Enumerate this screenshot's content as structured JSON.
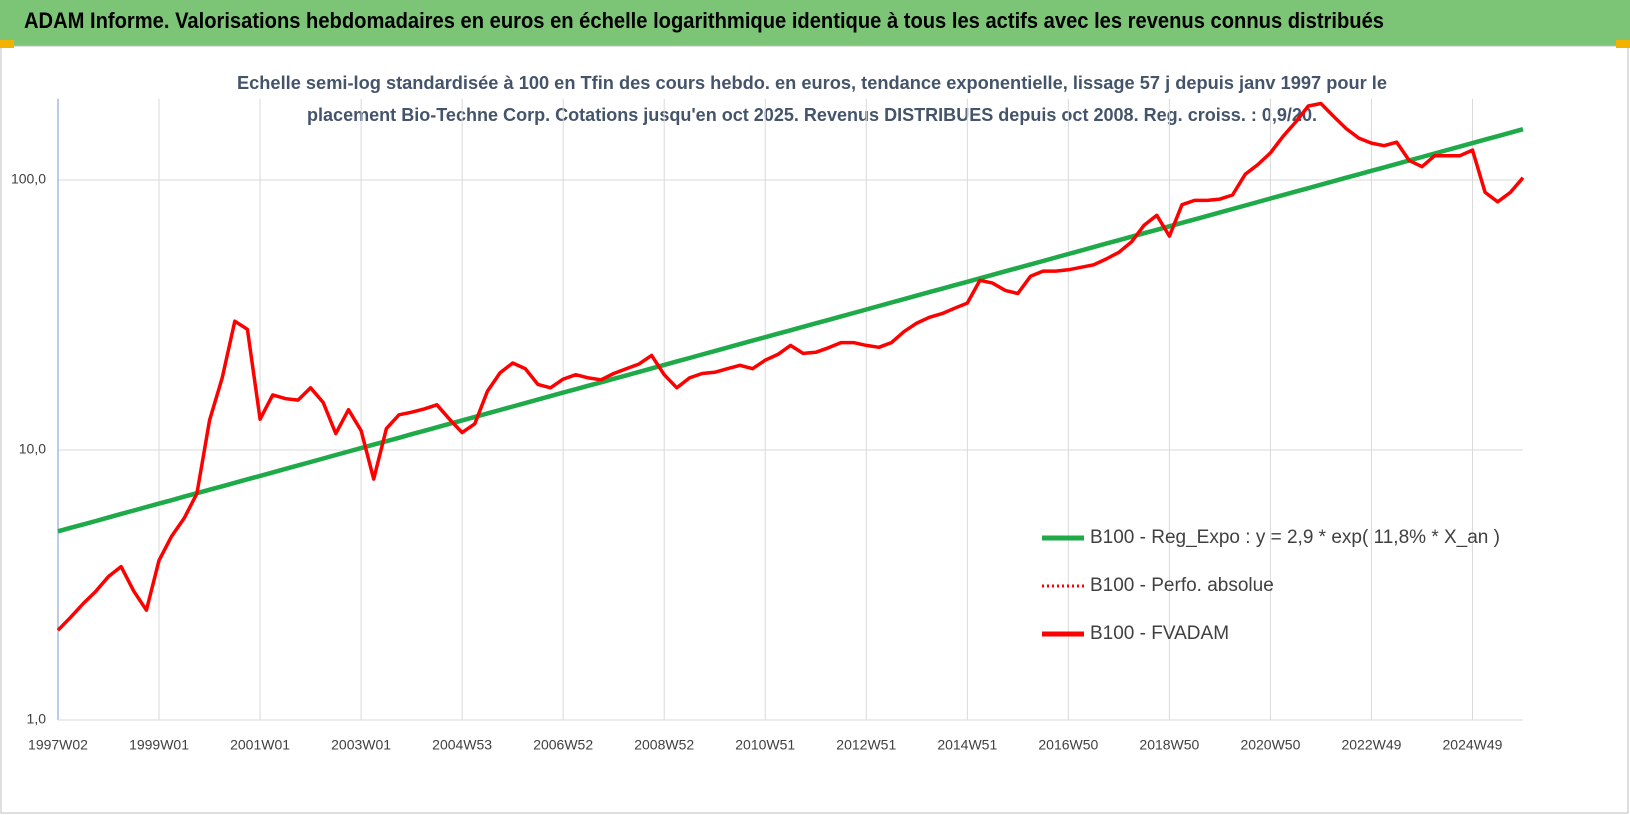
{
  "chart_data": {
    "type": "line",
    "title": "ADAM Informe. Valorisations hebdomadaires en euros en échelle logarithmique identique à tous les actifs avec les revenus connus distribués",
    "subtitle_lines": [
      "Echelle semi-log standardisée à 100 en Tfin des cours hebdo. en euros, tendance exponentielle, lissage 57 j depuis janv 1997 pour le",
      "placement Bio-Techne Corp. Cotations jusqu'en oct 2025. Revenus DISTRIBUES depuis oct 2008. Reg. croiss. : 0,9/20."
    ],
    "log_scale": true,
    "grid": true,
    "legend_position": "right",
    "ylim": [
      1,
      200
    ],
    "yticks": [
      {
        "value": 1,
        "label": "1,0"
      },
      {
        "value": 10,
        "label": "10,0"
      },
      {
        "value": 100,
        "label": "100,0"
      }
    ],
    "categories": [
      "1997W02",
      null,
      null,
      null,
      null,
      null,
      null,
      null,
      "1999W01",
      null,
      null,
      null,
      null,
      null,
      null,
      null,
      "2001W01",
      null,
      null,
      null,
      null,
      null,
      null,
      null,
      "2003W01",
      null,
      null,
      null,
      null,
      null,
      null,
      null,
      "2004W53",
      null,
      null,
      null,
      null,
      null,
      null,
      null,
      "2006W52",
      null,
      null,
      null,
      null,
      null,
      null,
      null,
      "2008W52",
      null,
      null,
      null,
      null,
      null,
      null,
      null,
      "2010W51",
      null,
      null,
      null,
      null,
      null,
      null,
      null,
      "2012W51",
      null,
      null,
      null,
      null,
      null,
      null,
      null,
      "2014W51",
      null,
      null,
      null,
      null,
      null,
      null,
      null,
      "2016W50",
      null,
      null,
      null,
      null,
      null,
      null,
      null,
      "2018W50",
      null,
      null,
      null,
      null,
      null,
      null,
      null,
      "2020W50",
      null,
      null,
      null,
      null,
      null,
      null,
      null,
      "2022W49",
      null,
      null,
      null,
      null,
      null,
      null,
      null,
      "2024W49",
      null,
      null,
      null,
      null
    ],
    "series": [
      {
        "name": "B100 - Reg_Expo : y = 2,9 * exp( 11,8% *  X_an )",
        "color": "#1faa4a",
        "style": "solid",
        "width": 4.5,
        "values": [
          5.0,
          5.15,
          5.3,
          5.46,
          5.63,
          5.8,
          5.97,
          6.15,
          6.33,
          6.52,
          6.72,
          6.92,
          7.13,
          7.34,
          7.56,
          7.79,
          8.02,
          8.26,
          8.51,
          8.77,
          9.03,
          9.3,
          9.58,
          9.87,
          10.16,
          10.47,
          10.78,
          11.1,
          11.44,
          11.78,
          12.14,
          12.5,
          12.87,
          13.26,
          13.66,
          14.07,
          14.49,
          14.92,
          15.37,
          15.83,
          16.31,
          16.8,
          17.3,
          17.82,
          18.35,
          18.9,
          19.47,
          20.06,
          20.66,
          21.28,
          21.92,
          22.57,
          23.25,
          23.95,
          24.67,
          25.41,
          26.17,
          26.95,
          27.76,
          28.59,
          29.45,
          30.34,
          31.25,
          32.18,
          33.15,
          34.14,
          35.17,
          36.22,
          37.31,
          38.43,
          39.58,
          40.77,
          41.99,
          43.25,
          44.55,
          45.89,
          47.26,
          48.68,
          50.14,
          51.65,
          53.2,
          54.79,
          56.44,
          58.13,
          59.87,
          61.67,
          63.52,
          65.42,
          67.39,
          69.41,
          71.49,
          73.64,
          75.85,
          78.12,
          80.46,
          82.88,
          85.37,
          87.93,
          90.57,
          93.28,
          96.08,
          98.97,
          101.94,
          104.99,
          108.14,
          111.39,
          114.73,
          118.17,
          121.72,
          125.37,
          129.13,
          133.0,
          136.99,
          141.1,
          145.34,
          149.7,
          154.19
        ]
      },
      {
        "name": "B100 - Perfo. absolue",
        "color": "#ff0000",
        "style": "dotted",
        "width": 2.5,
        "values": [
          2.15,
          2.4,
          2.7,
          3.0,
          3.4,
          3.7,
          3.0,
          2.55,
          3.9,
          4.8,
          5.6,
          6.9,
          12.9,
          18.5,
          30,
          28,
          13,
          16,
          15.5,
          15.3,
          17,
          15,
          11.5,
          14.1,
          11.8,
          7.8,
          12,
          13.5,
          13.8,
          14.2,
          14.7,
          13,
          11.6,
          12.5,
          16.5,
          19.3,
          21,
          20,
          17.5,
          17,
          18.3,
          19,
          18.5,
          18.2,
          19.2,
          20,
          20.8,
          22.4,
          19,
          17,
          18.5,
          19.2,
          19.4,
          20,
          20.6,
          20,
          21.5,
          22.6,
          24.4,
          22.8,
          23,
          23.9,
          25,
          25,
          24.4,
          24,
          25,
          27.5,
          29.5,
          31,
          32,
          33.5,
          35,
          42.5,
          41.5,
          39,
          38,
          44,
          46,
          46,
          46.5,
          47.5,
          48.5,
          51,
          54,
          59,
          68,
          74,
          62,
          81,
          84,
          84,
          85,
          88,
          105,
          114,
          126,
          145,
          164,
          188,
          192,
          172,
          155,
          143,
          137,
          134,
          138,
          118,
          112,
          123,
          123,
          123,
          129,
          90,
          83,
          90,
          102
        ]
      },
      {
        "name": "B100 - FVADAM",
        "color": "#ff0000",
        "style": "solid",
        "width": 3.5,
        "values": [
          2.15,
          2.4,
          2.7,
          3.0,
          3.4,
          3.7,
          3.0,
          2.55,
          3.9,
          4.8,
          5.6,
          6.9,
          12.9,
          18.5,
          30,
          28,
          13,
          16,
          15.5,
          15.3,
          17,
          15,
          11.5,
          14.1,
          11.8,
          7.8,
          12,
          13.5,
          13.8,
          14.2,
          14.7,
          13,
          11.6,
          12.5,
          16.5,
          19.3,
          21,
          20,
          17.5,
          17,
          18.3,
          19,
          18.5,
          18.2,
          19.2,
          20,
          20.8,
          22.4,
          19,
          17,
          18.5,
          19.2,
          19.4,
          20,
          20.6,
          20,
          21.5,
          22.6,
          24.4,
          22.8,
          23,
          23.9,
          25,
          25,
          24.4,
          24,
          25,
          27.5,
          29.5,
          31,
          32,
          33.5,
          35,
          42.5,
          41.5,
          39,
          38,
          44,
          46,
          46,
          46.5,
          47.5,
          48.5,
          51,
          54,
          59,
          68,
          74,
          62,
          81,
          84,
          84,
          85,
          88,
          105,
          114,
          126,
          145,
          164,
          188,
          192,
          172,
          155,
          143,
          137,
          134,
          138,
          118,
          112,
          123,
          123,
          123,
          129,
          90,
          83,
          90,
          102
        ]
      }
    ]
  }
}
